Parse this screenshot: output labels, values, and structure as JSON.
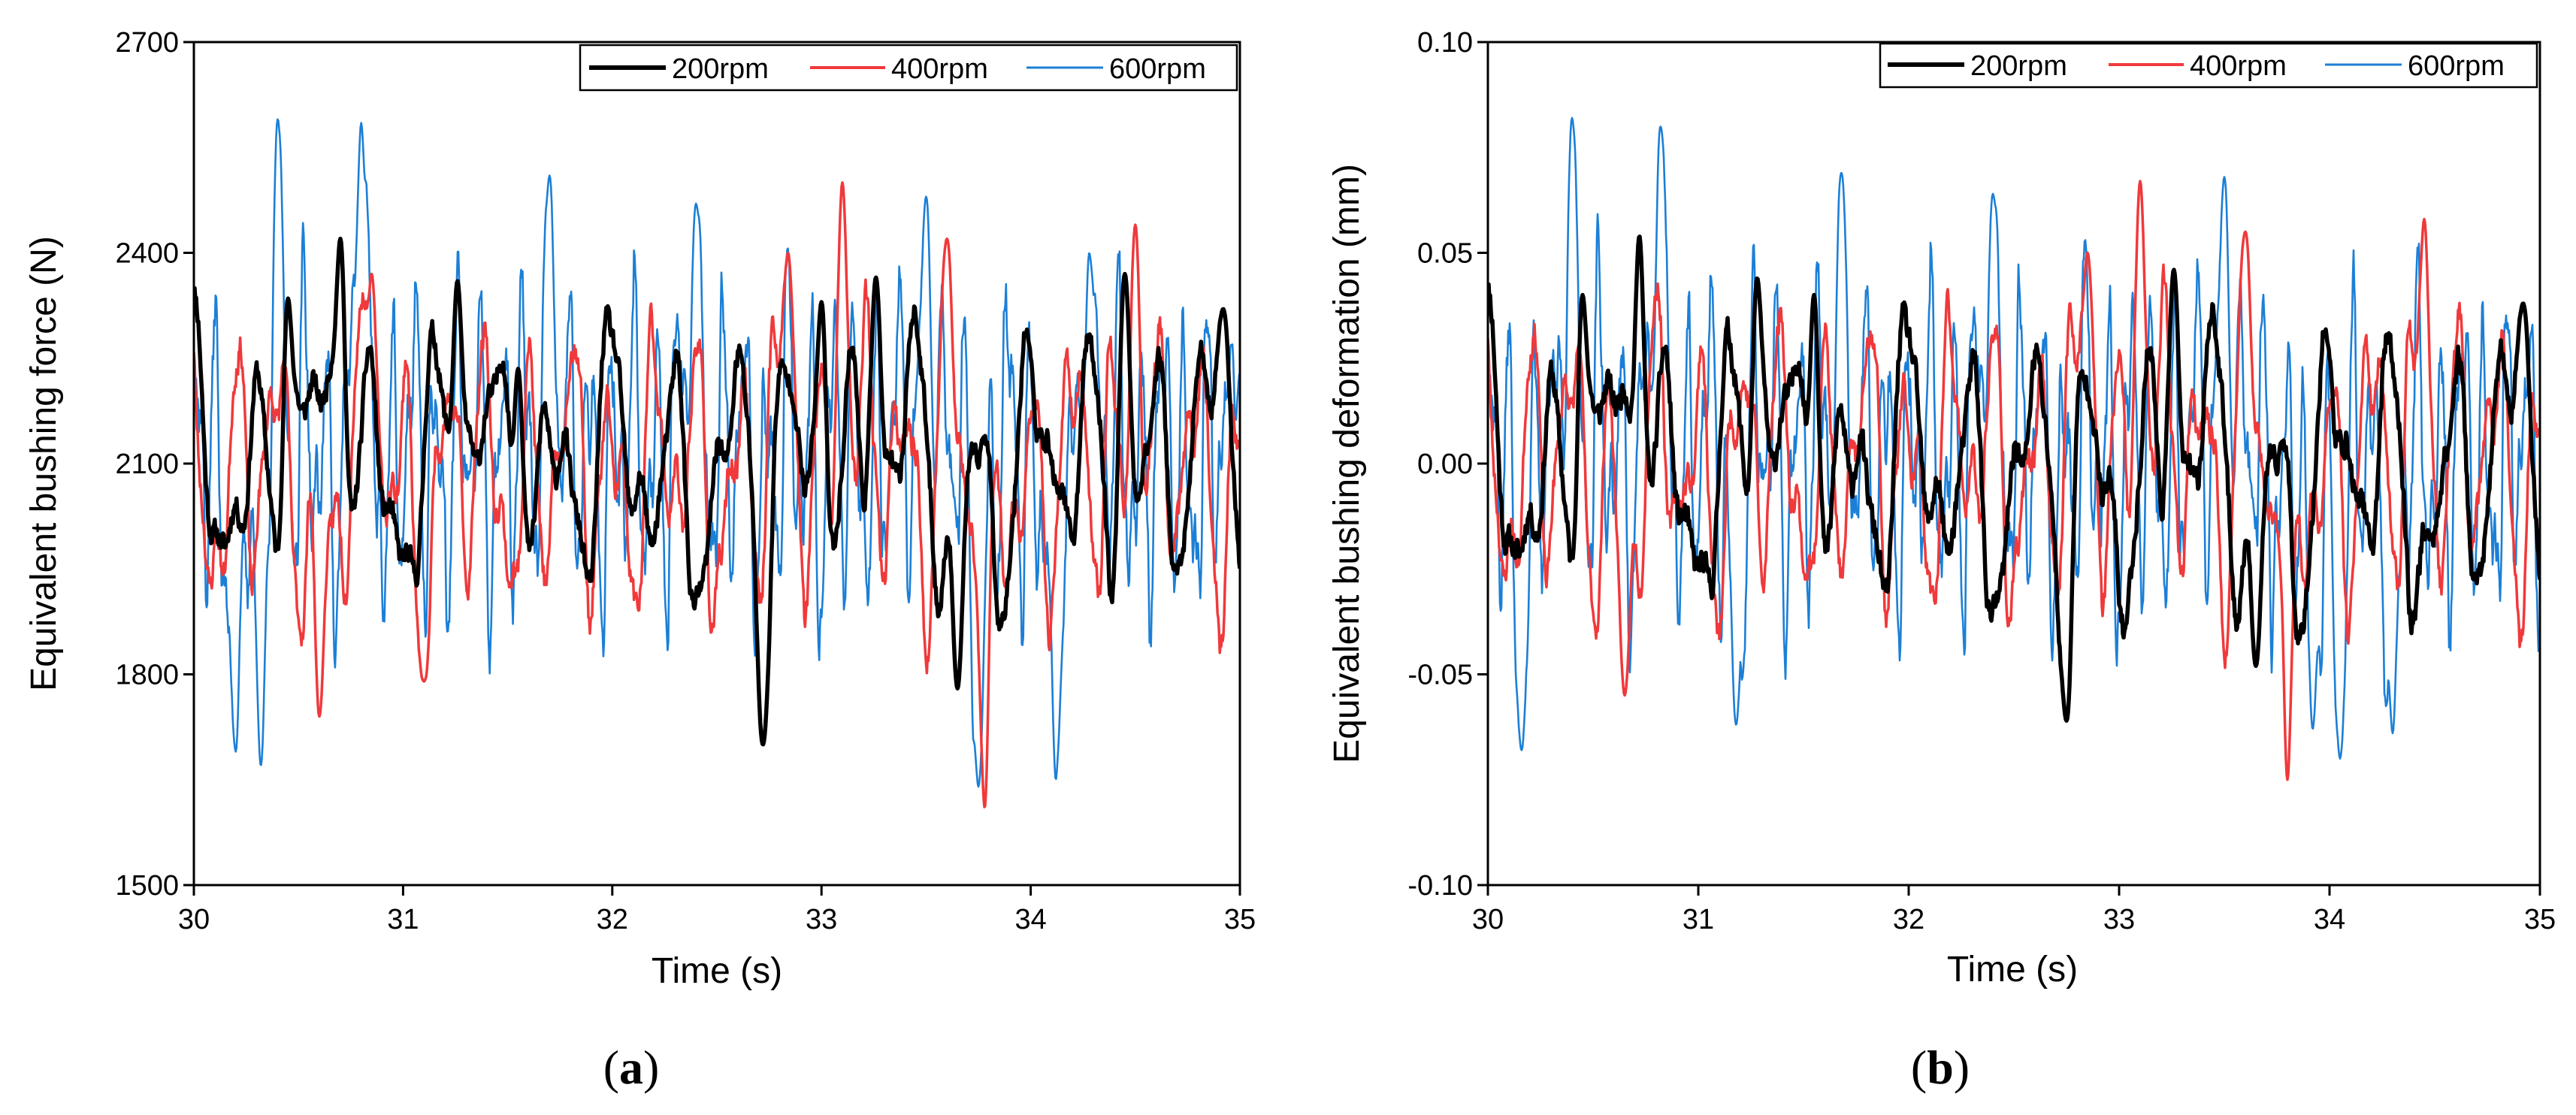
{
  "colors": {
    "s200": "#000000",
    "s400": "#f0393b",
    "s600": "#1c7fd6"
  },
  "chart_data": [
    {
      "type": "line",
      "panel_label_open": "(",
      "panel_label_letter": "a",
      "panel_label_close": ")",
      "title": "",
      "xlabel": "Time (s)",
      "ylabel": "Equivalent bushing force (N)",
      "xlim": [
        30,
        35
      ],
      "ylim": [
        1500,
        2700
      ],
      "xticks": [
        30,
        31,
        32,
        33,
        34,
        35
      ],
      "xtick_labels": [
        "30",
        "31",
        "32",
        "33",
        "34",
        "35"
      ],
      "yticks": [
        1500,
        1800,
        2100,
        2400,
        2700
      ],
      "ytick_labels": [
        "1500",
        "1800",
        "2100",
        "2400",
        "2700"
      ],
      "legend_position": "top-right",
      "series": [
        {
          "name": "200rpm",
          "color": "#000000",
          "width": 5.5,
          "mean": 2090,
          "amp": 230,
          "freq": 3.5,
          "seed": 11,
          "noise": 20,
          "peaks": [
            [
              30.7,
              2420
            ],
            [
              30.45,
              2335
            ],
            [
              31.55,
              2235
            ],
            [
              33.0,
              2330
            ],
            [
              33.26,
              2365
            ],
            [
              32.72,
              1700
            ],
            [
              33.65,
              1780
            ],
            [
              34.45,
              2370
            ],
            [
              34.92,
              2320
            ],
            [
              31.26,
              2360
            ]
          ]
        },
        {
          "name": "400rpm",
          "color": "#f0393b",
          "width": 3.5,
          "mean": 2085,
          "amp": 245,
          "freq": 5.0,
          "seed": 23,
          "noise": 25,
          "peaks": [
            [
              33.1,
              2500
            ],
            [
              33.78,
              1610
            ],
            [
              33.6,
              2420
            ],
            [
              34.5,
              2440
            ],
            [
              30.6,
              1740
            ],
            [
              30.85,
              2370
            ],
            [
              32.84,
              2400
            ],
            [
              31.1,
              1790
            ]
          ]
        },
        {
          "name": "600rpm",
          "color": "#1c7fd6",
          "width": 2.6,
          "mean": 2110,
          "amp": 280,
          "freq": 9.5,
          "seed": 37,
          "noise": 45,
          "peaks": [
            [
              30.4,
              2595
            ],
            [
              30.8,
              2585
            ],
            [
              30.2,
              1690
            ],
            [
              30.32,
              1670
            ],
            [
              31.7,
              2510
            ],
            [
              32.4,
              2470
            ],
            [
              33.5,
              2480
            ],
            [
              33.75,
              1640
            ],
            [
              34.12,
              1650
            ],
            [
              34.28,
              2400
            ],
            [
              35.0,
              2230
            ]
          ]
        }
      ]
    },
    {
      "type": "line",
      "panel_label_open": "(",
      "panel_label_letter": "b",
      "panel_label_close": ")",
      "title": "",
      "xlabel": "Time (s)",
      "ylabel": "Equivalent bushing deformation (mm)",
      "xlim": [
        30,
        35
      ],
      "ylim": [
        -0.1,
        0.1
      ],
      "xticks": [
        30,
        31,
        32,
        33,
        34,
        35
      ],
      "xtick_labels": [
        "30",
        "31",
        "32",
        "33",
        "34",
        "35"
      ],
      "yticks": [
        -0.1,
        -0.05,
        0.0,
        0.05,
        0.1
      ],
      "ytick_labels": [
        "-0.10",
        "-0.05",
        "0.00",
        "0.05",
        "0.10"
      ],
      "legend_position": "top-right",
      "series": [
        {
          "name": "200rpm",
          "color": "#000000",
          "width": 5.5,
          "mean": -0.003,
          "amp": 0.04,
          "freq": 3.5,
          "seed": 11,
          "noise": 0.004,
          "peaks": [
            [
              30.72,
              0.054
            ],
            [
              30.45,
              0.04
            ],
            [
              31.55,
              0.04
            ],
            [
              33.26,
              0.046
            ],
            [
              32.75,
              -0.061
            ],
            [
              33.65,
              -0.048
            ],
            [
              34.92,
              0.038
            ],
            [
              31.28,
              0.044
            ]
          ]
        },
        {
          "name": "400rpm",
          "color": "#f0393b",
          "width": 3.5,
          "mean": 0.0,
          "amp": 0.042,
          "freq": 5.0,
          "seed": 23,
          "noise": 0.004,
          "peaks": [
            [
              33.1,
              0.067
            ],
            [
              33.8,
              -0.075
            ],
            [
              33.6,
              0.055
            ],
            [
              34.45,
              0.058
            ],
            [
              30.65,
              -0.055
            ],
            [
              32.85,
              0.05
            ]
          ]
        },
        {
          "name": "600rpm",
          "color": "#1c7fd6",
          "width": 2.6,
          "mean": 0.002,
          "amp": 0.048,
          "freq": 9.5,
          "seed": 37,
          "noise": 0.008,
          "peaks": [
            [
              30.4,
              0.082
            ],
            [
              30.82,
              0.08
            ],
            [
              30.16,
              -0.068
            ],
            [
              31.68,
              0.069
            ],
            [
              33.5,
              0.068
            ],
            [
              32.4,
              0.064
            ],
            [
              34.05,
              -0.07
            ],
            [
              33.92,
              -0.063
            ],
            [
              34.3,
              -0.064
            ],
            [
              31.18,
              -0.062
            ]
          ]
        }
      ]
    }
  ]
}
